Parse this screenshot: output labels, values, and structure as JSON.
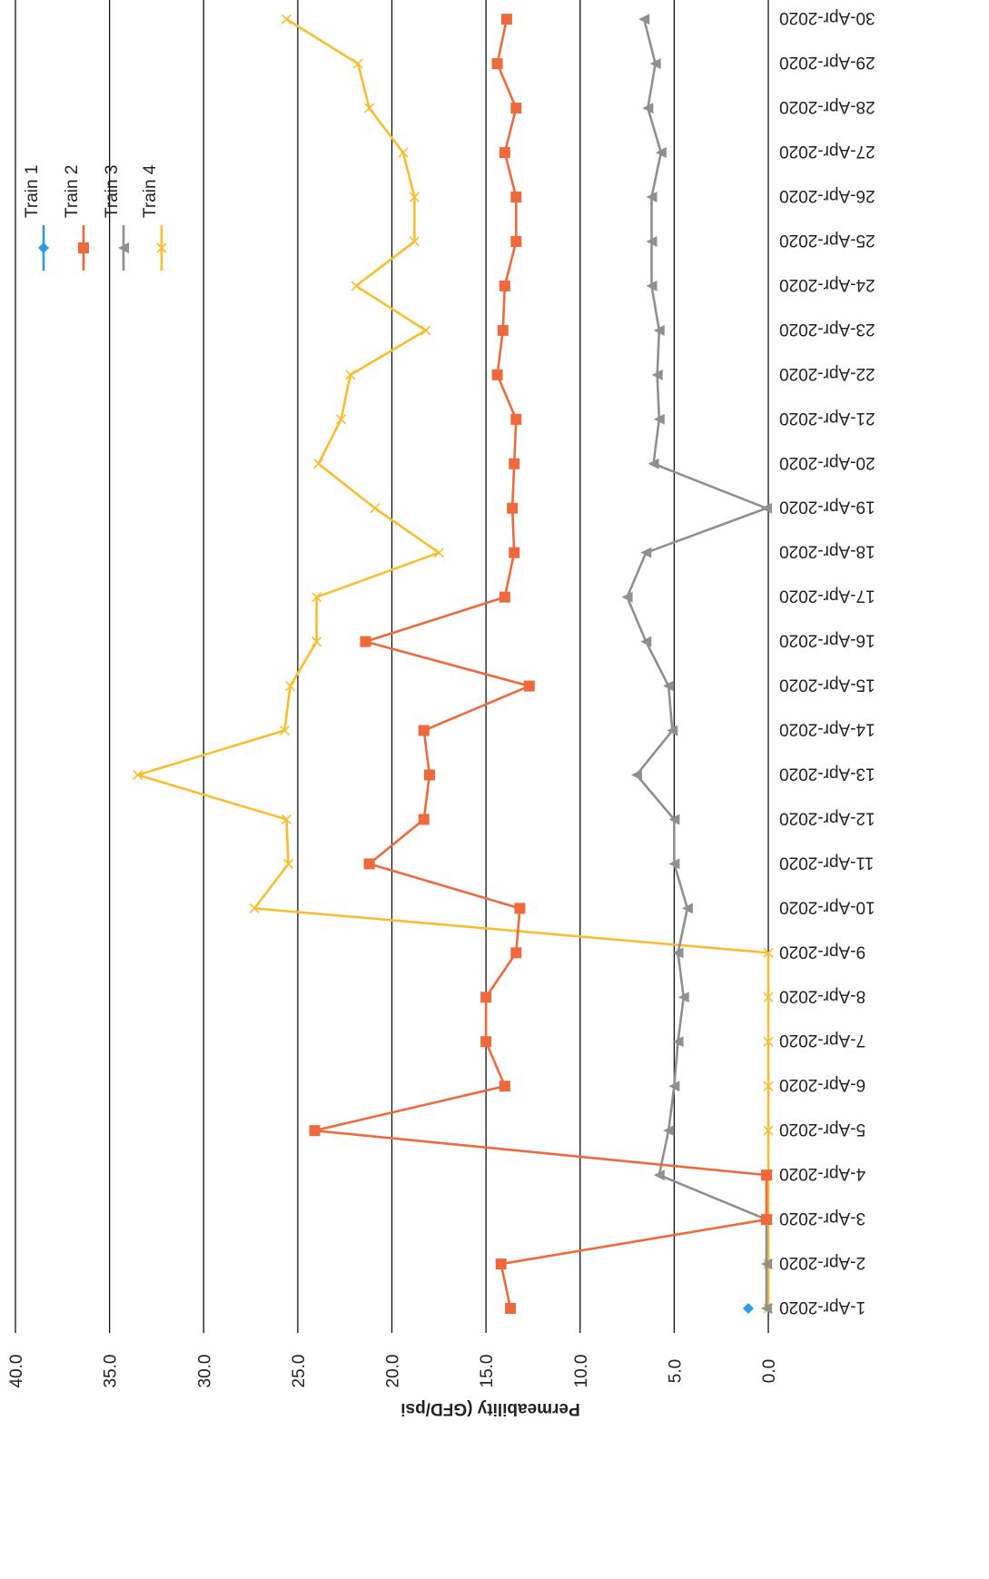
{
  "chart_data": {
    "type": "line",
    "ylabel": "Permeability (GFD/psi",
    "ylim": [
      0,
      40
    ],
    "y_ticks": [
      "0.0",
      "5.0",
      "10.0",
      "15.0",
      "20.0",
      "25.0",
      "30.0",
      "35.0",
      "40.0"
    ],
    "grid": "horizontal",
    "legend_position": "top-right",
    "categories": [
      "1-Apr-2020",
      "2-Apr-2020",
      "3-Apr-2020",
      "4-Apr-2020",
      "5-Apr-2020",
      "6-Apr-2020",
      "7-Apr-2020",
      "8-Apr-2020",
      "9-Apr-2020",
      "10-Apr-2020",
      "11-Apr-2020",
      "12-Apr-2020",
      "13-Apr-2020",
      "14-Apr-2020",
      "15-Apr-2020",
      "16-Apr-2020",
      "17-Apr-2020",
      "18-Apr-2020",
      "19-Apr-2020",
      "20-Apr-2020",
      "21-Apr-2020",
      "22-Apr-2020",
      "23-Apr-2020",
      "24-Apr-2020",
      "25-Apr-2020",
      "26-Apr-2020",
      "27-Apr-2020",
      "28-Apr-2020",
      "29-Apr-2020",
      "30-Apr-2020"
    ],
    "series": [
      {
        "name": "Train 1",
        "color": "#2e9be6",
        "marker": "diamond",
        "values": [
          1.0,
          null,
          null,
          null,
          null,
          null,
          null,
          null,
          null,
          null,
          null,
          null,
          null,
          null,
          null,
          null,
          null,
          null,
          null,
          null,
          null,
          null,
          null,
          null,
          null,
          null,
          null,
          null,
          null,
          null
        ]
      },
      {
        "name": "Train 2",
        "color": "#ee6a3d",
        "marker": "square",
        "values": [
          13.7,
          14.2,
          0.1,
          0.1,
          24.1,
          14.0,
          15.0,
          15.0,
          13.4,
          13.2,
          21.2,
          18.3,
          18.0,
          18.3,
          12.7,
          21.4,
          14.0,
          13.5,
          13.6,
          13.5,
          13.4,
          14.4,
          14.1,
          14.0,
          13.4,
          13.4,
          14.0,
          13.4,
          14.4,
          13.9
        ]
      },
      {
        "name": "Train 3",
        "color": "#8f8f8f",
        "marker": "triangle",
        "values": [
          0.1,
          0.1,
          0.1,
          5.8,
          5.3,
          5.0,
          4.8,
          4.5,
          4.8,
          4.3,
          5.0,
          5.0,
          7.0,
          5.1,
          5.3,
          6.5,
          7.5,
          6.5,
          0.1,
          6.1,
          5.8,
          5.9,
          5.8,
          6.2,
          6.2,
          6.2,
          5.7,
          6.4,
          6.0,
          6.6
        ]
      },
      {
        "name": "Train 4",
        "color": "#f9be2f",
        "marker": "x",
        "values": [
          0.0,
          0.0,
          0.0,
          0.0,
          0.0,
          0.0,
          0.0,
          0.0,
          0.0,
          27.3,
          25.5,
          25.6,
          33.5,
          25.7,
          25.4,
          24.0,
          24.0,
          17.5,
          20.9,
          23.9,
          22.7,
          22.2,
          18.2,
          21.9,
          18.8,
          18.8,
          19.4,
          21.2,
          21.8,
          25.6
        ]
      }
    ]
  }
}
